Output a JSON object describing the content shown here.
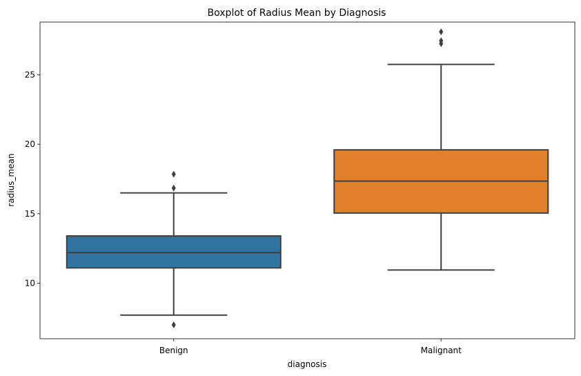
{
  "chart_data": {
    "type": "box",
    "title": "Boxplot of Radius Mean by Diagnosis",
    "xlabel": "diagnosis",
    "ylabel": "radius_mean",
    "ylim": [
      6.0,
      28.8
    ],
    "yticks": [
      10,
      15,
      20,
      25
    ],
    "grid": false,
    "categories": [
      "Benign",
      "Malignant"
    ],
    "boxes": [
      {
        "category": "Benign",
        "color": "#3274a1",
        "whisker_low": 7.7,
        "q1": 11.1,
        "median": 12.2,
        "q3": 13.4,
        "whisker_high": 16.5,
        "outliers": [
          7.0,
          16.85,
          17.85
        ]
      },
      {
        "category": "Malignant",
        "color": "#e1812c",
        "whisker_low": 10.95,
        "q1": 15.05,
        "median": 17.35,
        "q3": 19.6,
        "whisker_high": 25.75,
        "outliers": [
          27.25,
          27.45,
          28.1
        ]
      }
    ]
  }
}
